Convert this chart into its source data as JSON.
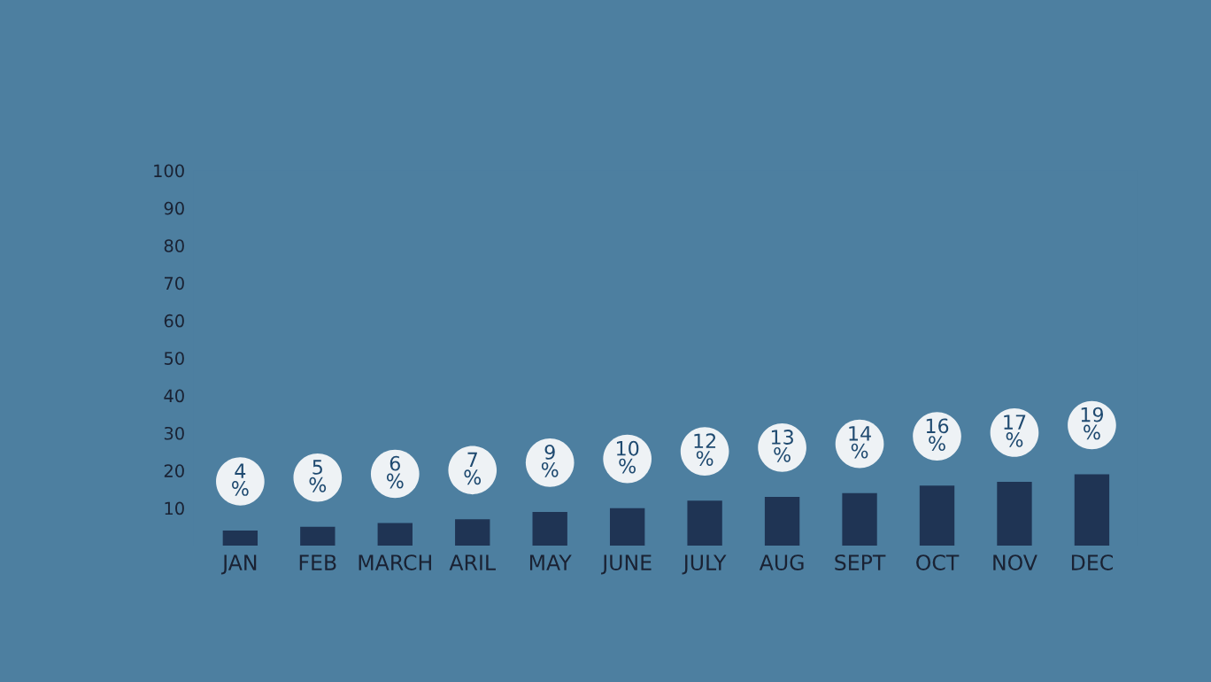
{
  "chart_data": {
    "type": "bar",
    "categories": [
      "JAN",
      "FEB",
      "MARCH",
      "ARIL",
      "MAY",
      "JUNE",
      "JULY",
      "AUG",
      "SEPT",
      "OCT",
      "NOV",
      "DEC"
    ],
    "values": [
      4,
      5,
      6,
      7,
      9,
      10,
      12,
      13,
      14,
      16,
      17,
      19
    ],
    "value_labels": [
      "4\n%",
      "5\n%",
      "6\n%",
      "7\n%",
      "9\n%",
      "10\n%",
      "12\n%",
      "13\n%",
      "14\n%",
      "16\n%",
      "17\n%",
      "19\n%"
    ],
    "color": "#1f3454",
    "ylim": [
      0,
      100
    ],
    "yticks": [
      10,
      20,
      30,
      40,
      50,
      60,
      70,
      80,
      90,
      100
    ],
    "grid": false,
    "legend": false
  }
}
